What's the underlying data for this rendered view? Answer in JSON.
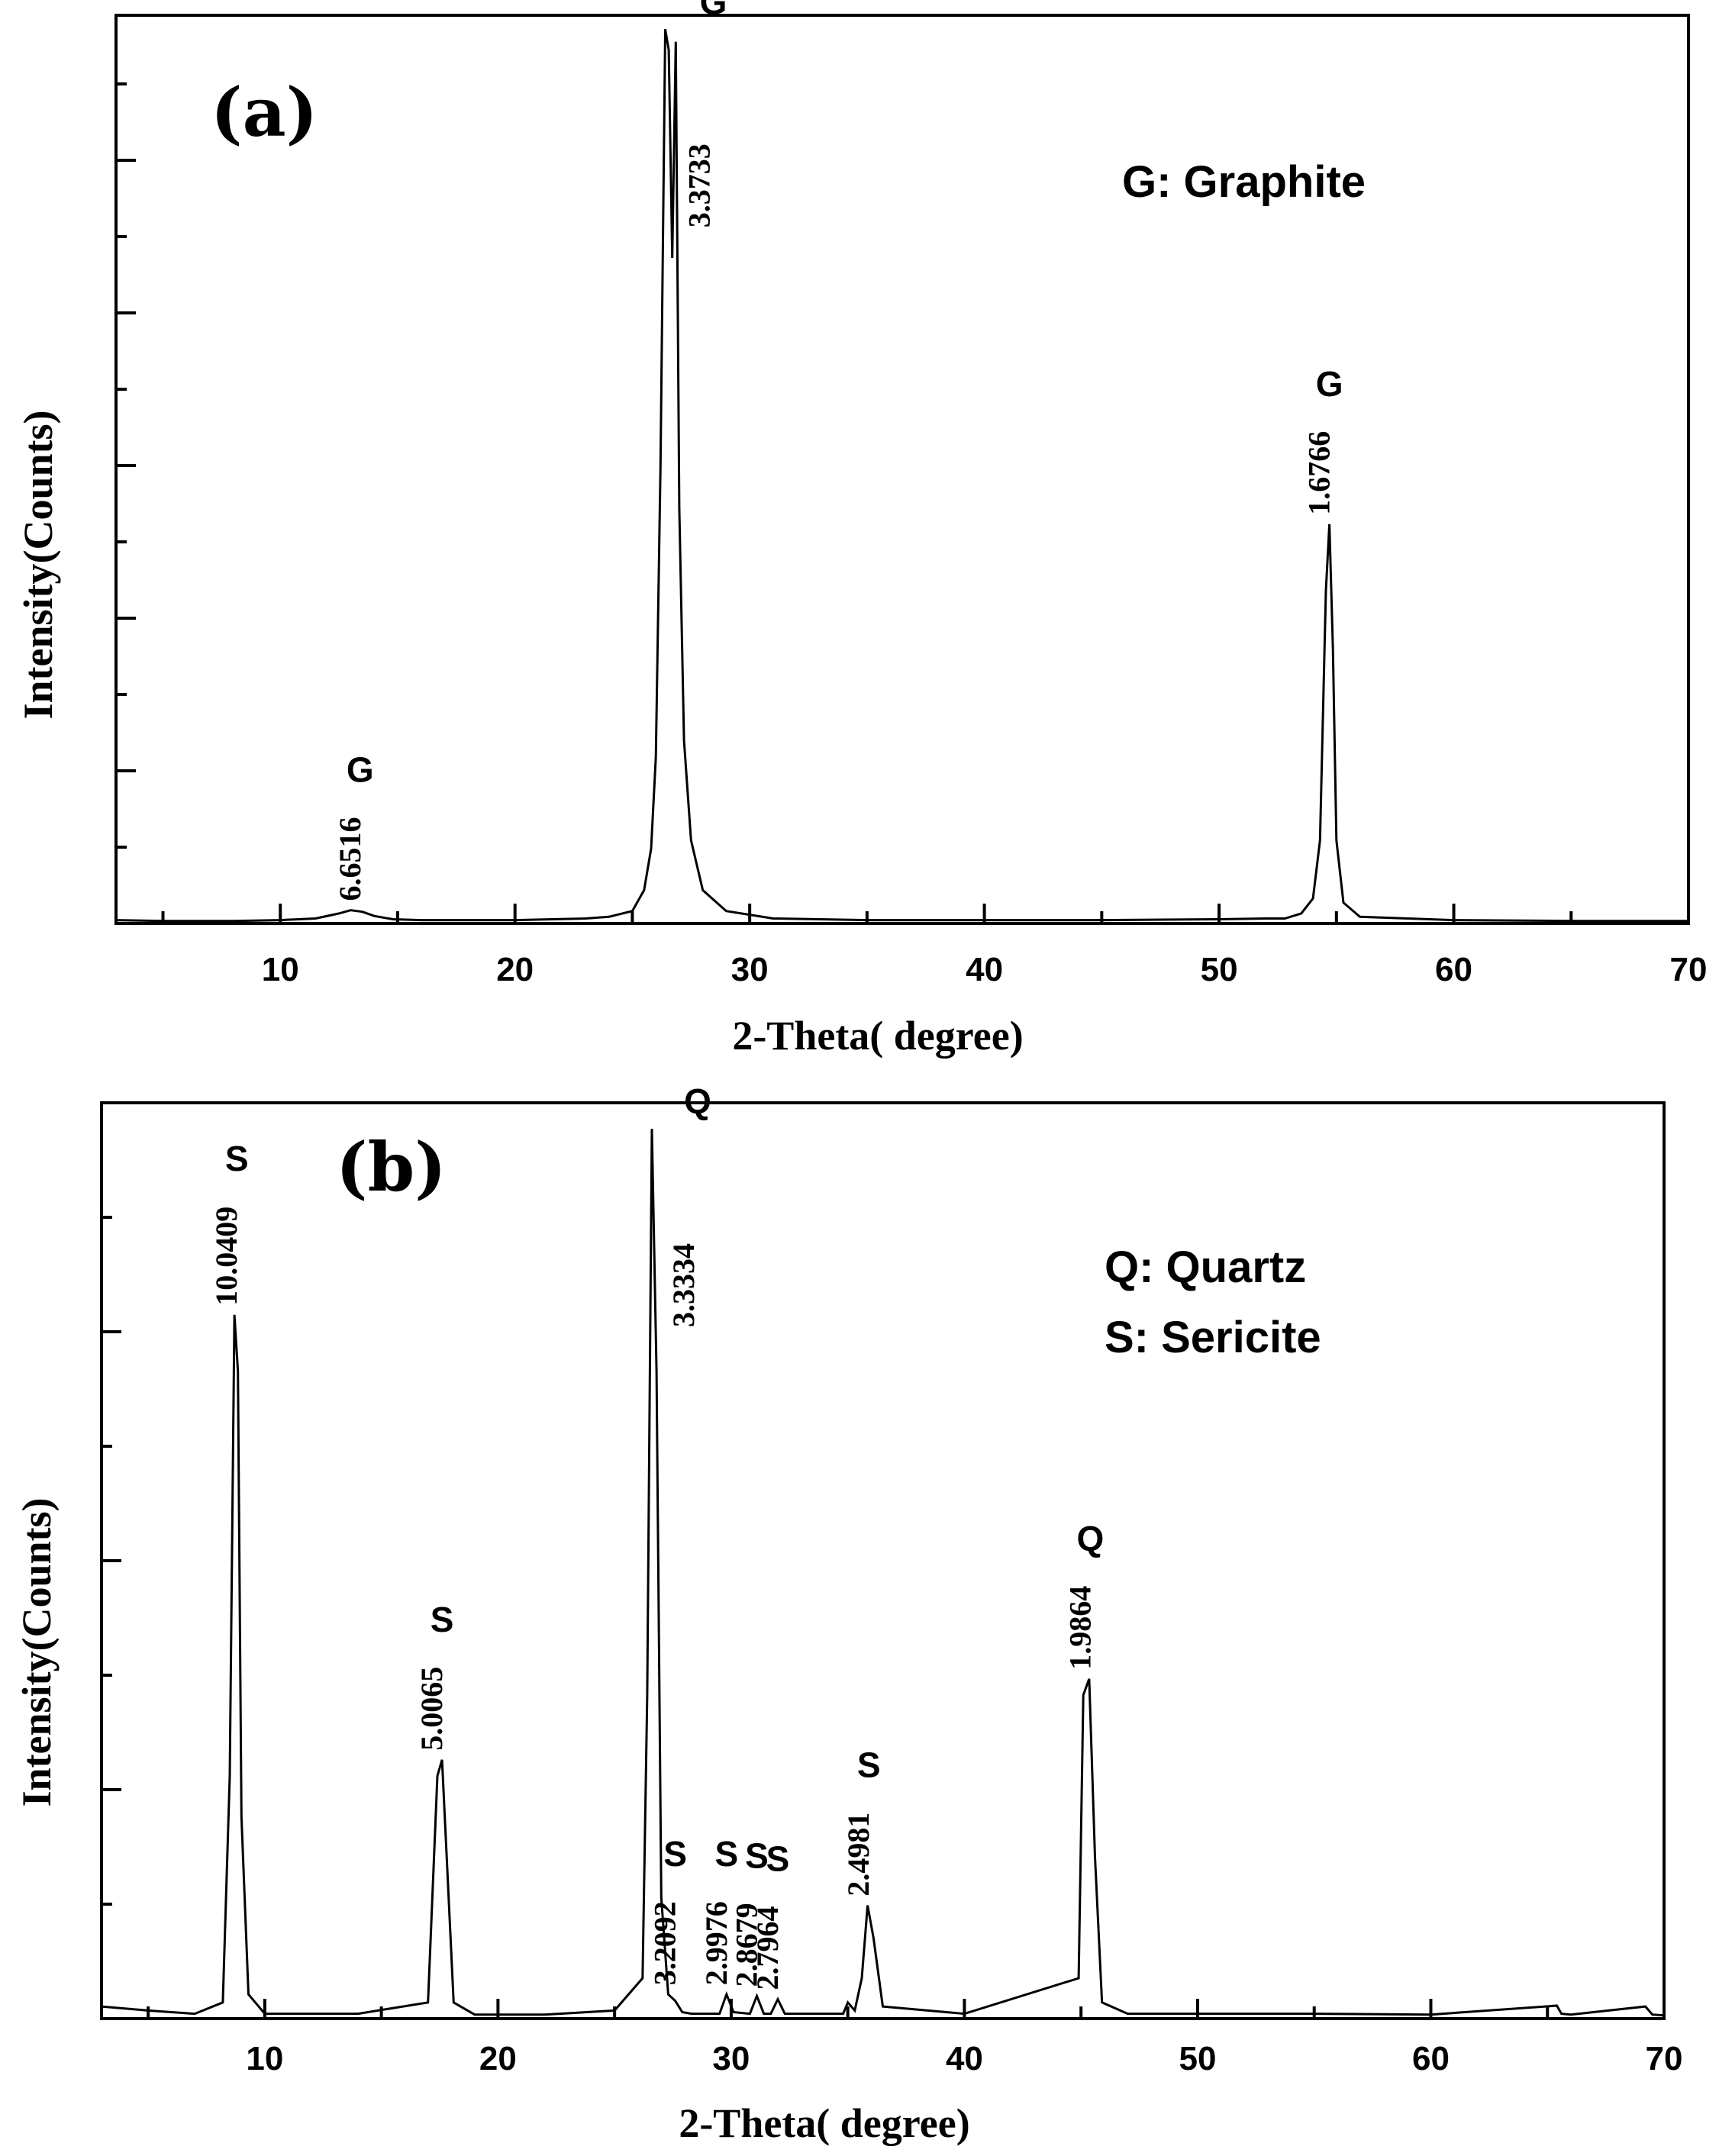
{
  "chart_data": [
    {
      "panel": "(a)",
      "type": "line",
      "xlabel": "2-Theta(  degree)",
      "ylabel": "Intensity(Counts)",
      "xlim": [
        3,
        70
      ],
      "ylim": [
        0,
        1.1
      ],
      "x_ticks": [
        10,
        20,
        30,
        40,
        50,
        60,
        70
      ],
      "y_tick_labels": false,
      "legend": [
        "G:  Graphite"
      ],
      "series": [
        {
          "x": [
            3,
            5,
            8,
            10,
            11.5,
            12.5,
            13.0,
            13.5,
            14.0,
            14.8,
            16,
            20,
            23,
            24,
            25.0,
            25.5,
            25.8,
            26.0,
            26.2,
            26.4,
            26.55,
            26.7,
            26.85,
            27.0,
            27.2,
            27.5,
            28,
            29,
            31,
            35,
            45,
            50,
            52,
            52.8,
            53.5,
            54.0,
            54.3,
            54.55,
            54.7,
            54.85,
            55.0,
            55.3,
            56,
            60,
            65,
            70
          ],
          "y": [
            0.004,
            0.003,
            0.003,
            0.004,
            0.006,
            0.012,
            0.016,
            0.014,
            0.009,
            0.005,
            0.004,
            0.004,
            0.006,
            0.008,
            0.015,
            0.04,
            0.09,
            0.2,
            0.55,
            1.075,
            1.05,
            0.8,
            1.06,
            0.5,
            0.22,
            0.1,
            0.04,
            0.015,
            0.006,
            0.004,
            0.004,
            0.005,
            0.006,
            0.006,
            0.012,
            0.03,
            0.1,
            0.4,
            0.48,
            0.33,
            0.1,
            0.025,
            0.008,
            0.004,
            0.003,
            0.003
          ]
        }
      ],
      "peaks": [
        {
          "phase": "G",
          "d": "6.6516",
          "two_theta": 13.4
        },
        {
          "phase": "G",
          "d": "3.3733",
          "two_theta": 26.5
        },
        {
          "phase": "G",
          "d": "1.6766",
          "two_theta": 54.7
        }
      ]
    },
    {
      "panel": "(b)",
      "type": "line",
      "xlabel": "2-Theta(  degree)",
      "ylabel": "Intensity(Counts)",
      "xlim": [
        3,
        70
      ],
      "ylim": [
        0,
        1.1
      ],
      "x_ticks": [
        10,
        20,
        30,
        40,
        50,
        60,
        70
      ],
      "y_tick_labels": false,
      "legend": [
        "Q:  Quartz",
        "S:  Sericite"
      ],
      "series": [
        {
          "x": [
            3,
            5,
            7,
            8.2,
            8.5,
            8.7,
            8.85,
            9.0,
            9.3,
            10,
            14,
            17.0,
            17.4,
            17.6,
            17.8,
            18.1,
            19,
            22,
            25,
            26.2,
            26.4,
            26.6,
            26.8,
            27.0,
            27.3,
            27.6,
            27.9,
            28.3,
            29.5,
            29.8,
            30.1,
            30.8,
            31.1,
            31.4,
            31.7,
            32.0,
            32.3,
            34.8,
            35.0,
            35.3,
            35.6,
            35.85,
            36.1,
            36.5,
            40,
            44.9,
            45.1,
            45.35,
            45.6,
            45.9,
            47,
            55,
            60,
            65.4,
            65.6,
            66,
            69.2,
            69.5,
            70
          ],
          "y": [
            0.015,
            0.01,
            0.006,
            0.02,
            0.3,
            0.87,
            0.8,
            0.25,
            0.03,
            0.006,
            0.006,
            0.02,
            0.3,
            0.32,
            0.2,
            0.02,
            0.005,
            0.005,
            0.01,
            0.05,
            0.4,
            1.1,
            0.8,
            0.15,
            0.03,
            0.022,
            0.008,
            0.006,
            0.006,
            0.03,
            0.008,
            0.006,
            0.028,
            0.006,
            0.006,
            0.024,
            0.006,
            0.006,
            0.02,
            0.01,
            0.05,
            0.14,
            0.1,
            0.015,
            0.006,
            0.05,
            0.4,
            0.42,
            0.2,
            0.02,
            0.006,
            0.006,
            0.005,
            0.016,
            0.006,
            0.005,
            0.015,
            0.005,
            0.004
          ]
        }
      ],
      "peaks": [
        {
          "phase": "S",
          "d": "10.0409",
          "two_theta": 8.8
        },
        {
          "phase": "S",
          "d": "5.0065",
          "two_theta": 17.6
        },
        {
          "phase": "Q",
          "d": "3.3334",
          "two_theta": 26.6
        },
        {
          "phase": "S",
          "d": "3.2092",
          "two_theta": 27.6
        },
        {
          "phase": "S",
          "d": "2.9976",
          "two_theta": 29.8
        },
        {
          "phase": "S",
          "d": "2.8679",
          "two_theta": 31.1
        },
        {
          "phase": "S",
          "d": "2.7964",
          "two_theta": 32.0
        },
        {
          "phase": "S",
          "d": "2.4981",
          "two_theta": 35.9
        },
        {
          "phase": "Q",
          "d": "1.9864",
          "two_theta": 45.4
        }
      ]
    }
  ]
}
